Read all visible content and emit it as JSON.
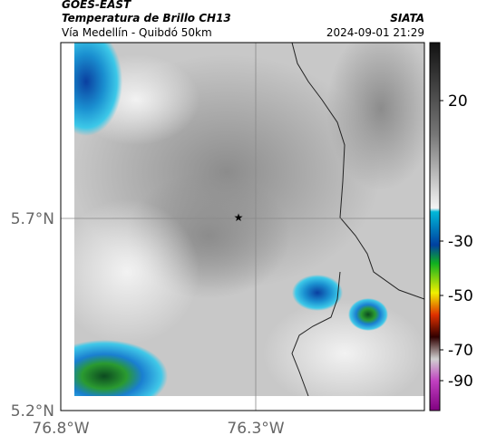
{
  "header": {
    "satellite": "GOES-EAST",
    "product": "Temperatura de Brillo CH13",
    "source": "SIATA",
    "route": "Vía Medellín - Quibdó 50km",
    "timestamp": "2024-09-01 21:29"
  },
  "map": {
    "lat_labels": [
      "5.7°N",
      "5.2°N"
    ],
    "lon_labels": [
      "76.8°W",
      "76.3°W"
    ]
  },
  "colorbar": {
    "tick_labels": [
      "20",
      "-30",
      "-50",
      "-70",
      "-90"
    ]
  }
}
